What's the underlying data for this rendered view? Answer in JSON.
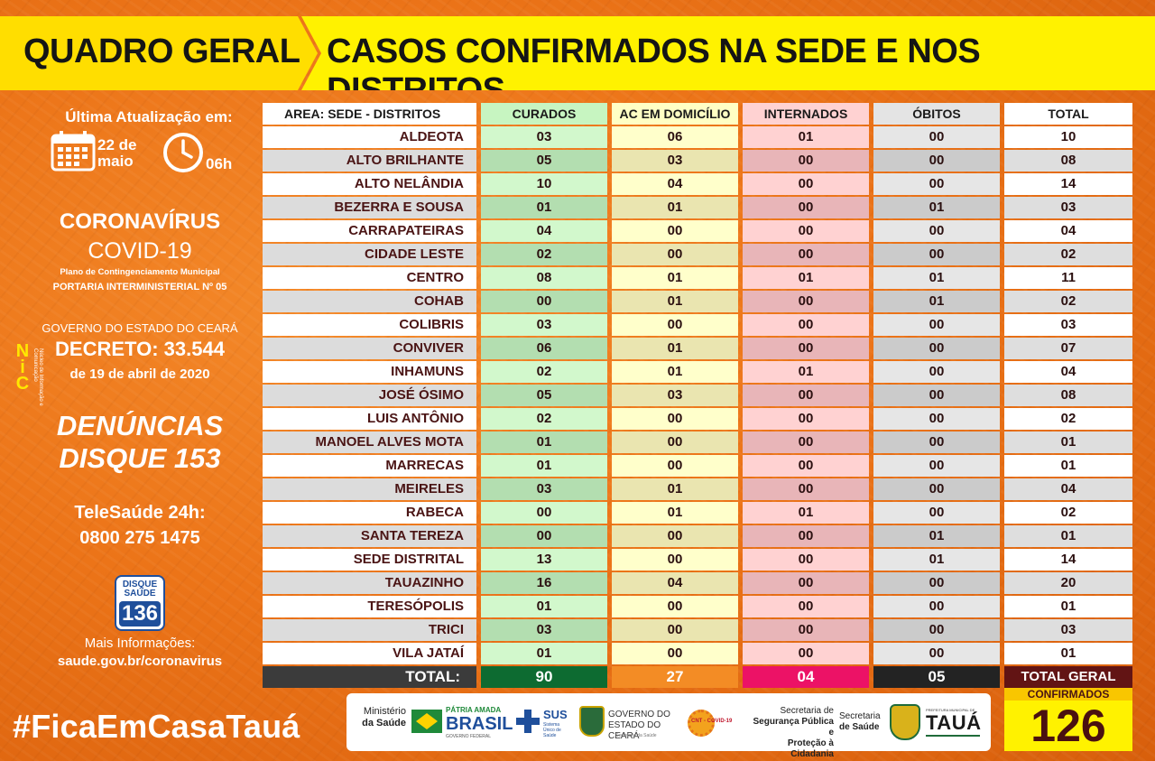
{
  "header": {
    "left_title": "QUADRO GERAL",
    "right_title": "CASOS CONFIRMADOS NA SEDE E NOS DISTRITOS"
  },
  "sidebar": {
    "update_title": "Última Atualização em:",
    "date_line1": "22 de",
    "date_line2": "maio",
    "hour": "06h",
    "corona_title": "CORONAVÍRUS",
    "covid": "COVID-19",
    "plano": "Plano de Contingenciamento Municipal",
    "portaria": "PORTARIA INTERMINISTERIAL Nº 05",
    "governo": "GOVERNO DO ESTADO DO CEARÁ",
    "decreto": "DECRETO: 33.544",
    "decreto_date": "de 19 de abril de 2020",
    "denuncias_line1": "DENÚNCIAS",
    "denuncias_line2": "DISQUE 153",
    "tele_line1": "TeleSaúde 24h:",
    "tele_line2": "0800 275 1475",
    "disque_line1": "DISQUE",
    "disque_line2": "SAÚDE",
    "disque_number": "136",
    "mais_info": "Mais Informações:",
    "site": "saude.gov.br/coronavirus",
    "nic_logo": "NIC",
    "nic_subtitle": "Núcleo de Informação e Comunicação"
  },
  "hashtag": "#FicaEmCasaTauá",
  "table": {
    "headers": {
      "area": "AREA: SEDE - DISTRITOS",
      "curados": "CURADOS",
      "domicilio": "AC EM DOMICÍLIO",
      "internados": "INTERNADOS",
      "obitos": "ÓBITOS",
      "total": "TOTAL"
    },
    "rows": [
      {
        "area": "ALDEOTA",
        "curados": "03",
        "domicilio": "06",
        "internados": "01",
        "obitos": "00",
        "total": "10"
      },
      {
        "area": "ALTO BRILHANTE",
        "curados": "05",
        "domicilio": "03",
        "internados": "00",
        "obitos": "00",
        "total": "08"
      },
      {
        "area": "ALTO NELÂNDIA",
        "curados": "10",
        "domicilio": "04",
        "internados": "00",
        "obitos": "00",
        "total": "14"
      },
      {
        "area": "BEZERRA E SOUSA",
        "curados": "01",
        "domicilio": "01",
        "internados": "00",
        "obitos": "01",
        "total": "03"
      },
      {
        "area": "CARRAPATEIRAS",
        "curados": "04",
        "domicilio": "00",
        "internados": "00",
        "obitos": "00",
        "total": "04"
      },
      {
        "area": "CIDADE LESTE",
        "curados": "02",
        "domicilio": "00",
        "internados": "00",
        "obitos": "00",
        "total": "02"
      },
      {
        "area": "CENTRO",
        "curados": "08",
        "domicilio": "01",
        "internados": "01",
        "obitos": "01",
        "total": "11"
      },
      {
        "area": "COHAB",
        "curados": "00",
        "domicilio": "01",
        "internados": "00",
        "obitos": "01",
        "total": "02"
      },
      {
        "area": "COLIBRIS",
        "curados": "03",
        "domicilio": "00",
        "internados": "00",
        "obitos": "00",
        "total": "03"
      },
      {
        "area": "CONVIVER",
        "curados": "06",
        "domicilio": "01",
        "internados": "00",
        "obitos": "00",
        "total": "07"
      },
      {
        "area": "INHAMUNS",
        "curados": "02",
        "domicilio": "01",
        "internados": "01",
        "obitos": "00",
        "total": "04"
      },
      {
        "area": "JOSÉ ÓSIMO",
        "curados": "05",
        "domicilio": "03",
        "internados": "00",
        "obitos": "00",
        "total": "08"
      },
      {
        "area": "LUIS ANTÔNIO",
        "curados": "02",
        "domicilio": "00",
        "internados": "00",
        "obitos": "00",
        "total": "02"
      },
      {
        "area": "MANOEL ALVES MOTA",
        "curados": "01",
        "domicilio": "00",
        "internados": "00",
        "obitos": "00",
        "total": "01"
      },
      {
        "area": "MARRECAS",
        "curados": "01",
        "domicilio": "00",
        "internados": "00",
        "obitos": "00",
        "total": "01"
      },
      {
        "area": "MEIRELES",
        "curados": "03",
        "domicilio": "01",
        "internados": "00",
        "obitos": "00",
        "total": "04"
      },
      {
        "area": "RABECA",
        "curados": "00",
        "domicilio": "01",
        "internados": "01",
        "obitos": "00",
        "total": "02"
      },
      {
        "area": "SANTA TEREZA",
        "curados": "00",
        "domicilio": "00",
        "internados": "00",
        "obitos": "01",
        "total": "01"
      },
      {
        "area": "SEDE DISTRITAL",
        "curados": "13",
        "domicilio": "00",
        "internados": "00",
        "obitos": "01",
        "total": "14"
      },
      {
        "area": "TAUAZINHO",
        "curados": "16",
        "domicilio": "04",
        "internados": "00",
        "obitos": "00",
        "total": "20"
      },
      {
        "area": "TERESÓPOLIS",
        "curados": "01",
        "domicilio": "00",
        "internados": "00",
        "obitos": "00",
        "total": "01"
      },
      {
        "area": "TRICI",
        "curados": "03",
        "domicilio": "00",
        "internados": "00",
        "obitos": "00",
        "total": "03"
      },
      {
        "area": "VILA JATAÍ",
        "curados": "01",
        "domicilio": "00",
        "internados": "00",
        "obitos": "00",
        "total": "01"
      }
    ],
    "totals": {
      "label": "TOTAL:",
      "curados": "90",
      "domicilio": "27",
      "internados": "04",
      "obitos": "05",
      "total_label": "TOTAL GERAL"
    }
  },
  "total_geral": {
    "label": "CONFIRMADOS",
    "value": "126"
  },
  "logos": {
    "ministerio_line1": "Ministério",
    "ministerio_line2": "da Saúde",
    "patria": "PÁTRIA AMADA",
    "brasil": "BRASIL",
    "gov_federal": "GOVERNO FEDERAL",
    "sus": "SUS",
    "sus_sub": "Sistema Único de Saúde",
    "governo_line1": "GOVERNO DO",
    "governo_line2": "ESTADO DO CEARÁ",
    "governo_sub": "Secretaria da Saúde",
    "cnt": "CNT - COVID-19",
    "ssp_line1": "Secretaria de",
    "ssp_line2": "Segurança Pública e",
    "ssp_line3": "Proteção à Cidadania",
    "sau_line1": "Secretaria",
    "sau_line2": "de Saúde",
    "prefeitura": "PREFEITURA MUNICIPAL DE",
    "taua": "TAUÁ"
  },
  "colors": {
    "background": "#ec7418",
    "header_yellow": "#fff200",
    "curados_total": "#0d6b31",
    "domicilio_total": "#f38c25",
    "internados_total": "#ec1266",
    "obitos_total": "#232323",
    "total_geral": "#621414"
  }
}
